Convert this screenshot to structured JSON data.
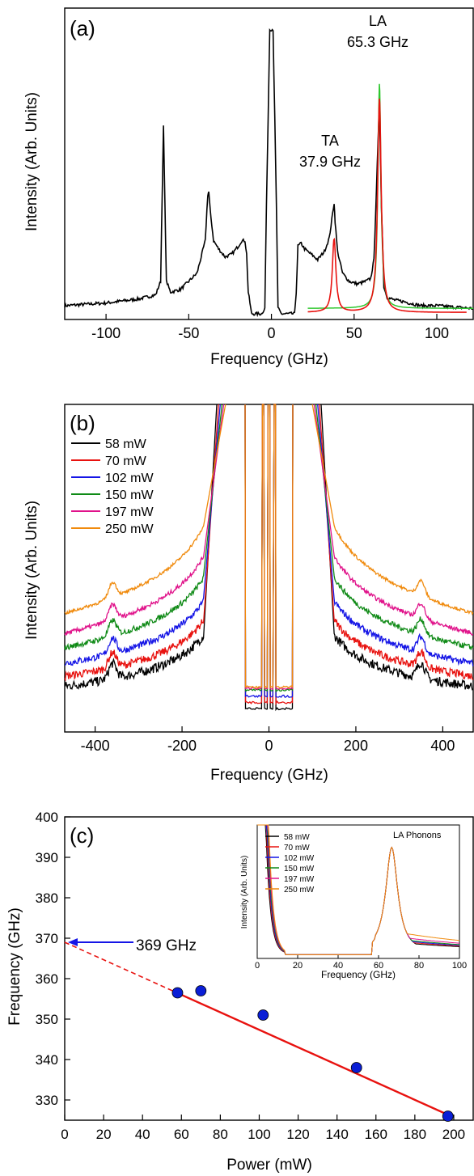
{
  "colors": {
    "black": "#000000",
    "red": "#e8120f",
    "blue": "#1515e6",
    "green": "#0f8a16",
    "magenta": "#e0128a",
    "orange": "#f08a0c",
    "lime": "#2ec72e",
    "marker": "#0a1ed6"
  },
  "chart_data": [
    {
      "panel": "(a)",
      "type": "line",
      "xlabel": "Frequency (GHz)",
      "ylabel": "Intensity (Arb. Units)",
      "xlim": [
        -125,
        122
      ],
      "ylim": [
        0,
        1
      ],
      "xticks": [
        -100,
        -50,
        0,
        50,
        100
      ],
      "xtick_labels": [
        "-100",
        "-50",
        "0",
        "50",
        "100"
      ],
      "annotations": [
        {
          "id": "la",
          "line1": "LA",
          "line2": "65.3 GHz"
        },
        {
          "id": "ta",
          "line1": "TA",
          "line2": "37.9 GHz"
        }
      ],
      "series": [
        {
          "role": "spectrum",
          "color": "black",
          "x": [
            -125,
            -100,
            -80,
            -70,
            -67,
            -65.3,
            -63.5,
            -61,
            -55,
            -45,
            -40,
            -38.5,
            -37.9,
            -37,
            -35,
            -32,
            -28,
            -24,
            -20,
            -18,
            -16,
            -15,
            -14,
            -12,
            -10,
            -8,
            -6,
            -4,
            -3,
            -1,
            1,
            3,
            4,
            6,
            8,
            10,
            12,
            14,
            15,
            16,
            18,
            20,
            24,
            28,
            32,
            35,
            37,
            37.9,
            38.5,
            40,
            43,
            47,
            52,
            57,
            60,
            62,
            64,
            65.3,
            66.5,
            68,
            70,
            75,
            80,
            90,
            100,
            110,
            122
          ],
          "y": [
            0.03,
            0.04,
            0.055,
            0.07,
            0.12,
            0.69,
            0.12,
            0.08,
            0.09,
            0.15,
            0.27,
            0.44,
            0.45,
            0.38,
            0.27,
            0.24,
            0.21,
            0.22,
            0.25,
            0.27,
            0.27,
            0.22,
            0.08,
            0.0,
            0.0,
            0.0,
            0.0,
            0.02,
            0.4,
            1.05,
            1.05,
            0.4,
            0.02,
            0.0,
            0.0,
            0.0,
            0.0,
            0.0,
            0.08,
            0.25,
            0.26,
            0.24,
            0.22,
            0.2,
            0.23,
            0.28,
            0.37,
            0.41,
            0.34,
            0.23,
            0.15,
            0.12,
            0.11,
            0.12,
            0.13,
            0.2,
            0.55,
            0.78,
            0.4,
            0.1,
            0.06,
            0.05,
            0.045,
            0.03,
            0.03,
            0.025,
            0.02
          ]
        },
        {
          "role": "fit-la",
          "color": "lime",
          "center": 65.3,
          "amplitude": 0.83,
          "width": 1.1,
          "baseline": 0.02,
          "x_from": 22,
          "x_to": 122
        },
        {
          "role": "fit-ta-la",
          "color": "red",
          "centers": [
            37.9,
            65.3
          ],
          "amplitudes": [
            0.27,
            0.79
          ],
          "width": 1.3,
          "baseline": 0.005,
          "x_from": 22,
          "x_to": 118
        }
      ]
    },
    {
      "panel": "(b)",
      "type": "line",
      "xlabel": "Frequency (GHz)",
      "ylabel": "Intensity (Arb. Units)",
      "xlim": [
        -470,
        470
      ],
      "ylim": [
        0,
        1
      ],
      "xticks": [
        -400,
        -200,
        0,
        200,
        400
      ],
      "xtick_labels": [
        "-400",
        "-200",
        "0",
        "200",
        "400"
      ],
      "legend": {
        "placement": "top-left",
        "entries": [
          "58 mW",
          "70 mW",
          "102 mW",
          "150 mW",
          "197 mW",
          "250 mW"
        ]
      },
      "series": [
        {
          "name": "58 mW",
          "color": "black",
          "level": 0.085
        },
        {
          "name": "70 mW",
          "color": "red",
          "level": 0.12
        },
        {
          "name": "102 mW",
          "color": "blue",
          "level": 0.165
        },
        {
          "name": "150 mW",
          "color": "green",
          "level": 0.22
        },
        {
          "name": "197 mW",
          "color": "magenta",
          "level": 0.27
        },
        {
          "name": "250 mW",
          "color": "orange",
          "level": 0.34
        }
      ],
      "peak_positions": [
        -360,
        350
      ]
    },
    {
      "panel": "(c)",
      "type": "scatter",
      "xlabel": "Power (mW)",
      "ylabel": "Frequency (GHz)",
      "xlim": [
        0,
        210
      ],
      "ylim": [
        325,
        400
      ],
      "xticks": [
        0,
        20,
        40,
        60,
        80,
        100,
        120,
        140,
        160,
        180,
        200
      ],
      "yticks": [
        330,
        340,
        350,
        360,
        370,
        380,
        390,
        400
      ],
      "points": {
        "x": [
          58,
          70,
          102,
          150,
          197
        ],
        "y": [
          356.5,
          357,
          351,
          338,
          326
        ]
      },
      "fit": {
        "intercept": 369,
        "slope": -0.2165,
        "solid_from": 58,
        "solid_to": 197
      },
      "arrow_label": "369 GHz",
      "inset": {
        "title": "LA Phonons",
        "xlabel": "Frequency (GHz)",
        "ylabel": "Intensity (Arb. Units)",
        "xlim": [
          0,
          100
        ],
        "xticks": [
          0,
          20,
          40,
          60,
          80,
          100
        ],
        "legend": {
          "placement": "top-left",
          "entries": [
            "58 mW",
            "70 mW",
            "102 mW",
            "150 mW",
            "197 mW",
            "250 mW"
          ]
        },
        "series": [
          {
            "name": "58 mW",
            "color": "black",
            "tail": 0.09
          },
          {
            "name": "70 mW",
            "color": "red",
            "tail": 0.1
          },
          {
            "name": "102 mW",
            "color": "blue",
            "tail": 0.11
          },
          {
            "name": "150 mW",
            "color": "green",
            "tail": 0.12
          },
          {
            "name": "197 mW",
            "color": "magenta",
            "tail": 0.14
          },
          {
            "name": "250 mW",
            "color": "orange",
            "tail": 0.18
          }
        ]
      }
    }
  ]
}
